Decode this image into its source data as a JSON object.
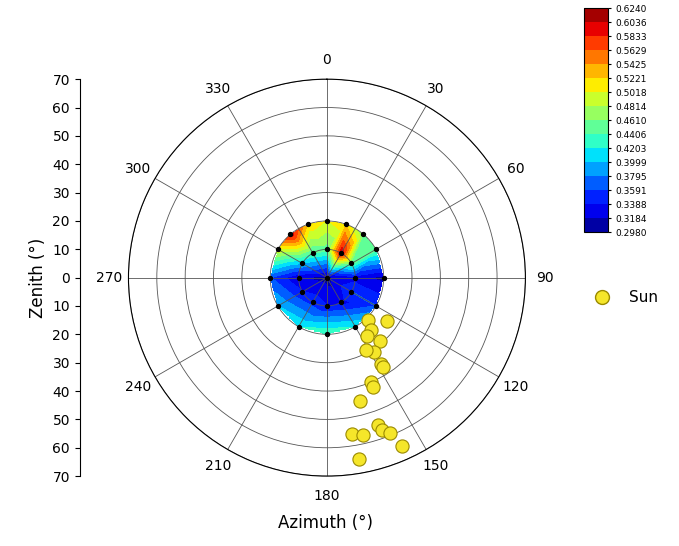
{
  "chart_data": {
    "type": "polar_heatmap",
    "x_label": "Azimuth (°)",
    "y_label": "Zenith (°)",
    "xticks": [
      0,
      30,
      60,
      90,
      120,
      150,
      180,
      210,
      240,
      270,
      300,
      330
    ],
    "ylim": [
      0,
      70
    ],
    "yticks": [
      0,
      10,
      20,
      30,
      40,
      50,
      60,
      70
    ],
    "grid": true,
    "legend": "center right",
    "colorbar": {
      "range": [
        0.298,
        0.624
      ],
      "ticks": [
        {
          "value": 0.298,
          "label": "0.2980"
        },
        0.3184,
        0.3388,
        0.3591,
        0.3795,
        0.3999,
        0.4203,
        0.4406,
        {
          "value": 0.461,
          "label": "0.4610"
        },
        0.4814,
        0.5018,
        0.5221,
        0.5425,
        0.5629,
        0.5833,
        0.6036,
        {
          "value": 0.624,
          "label": "0.6240"
        }
      ]
    },
    "measurements": {
      "azimuth": [
        0,
        0,
        30,
        60,
        90,
        120,
        150,
        180,
        210,
        240,
        270,
        300,
        330,
        0,
        20,
        40,
        60,
        90,
        120,
        150,
        180,
        210,
        240,
        270,
        300,
        320,
        340
      ],
      "zenith": [
        0,
        10,
        10,
        10,
        10,
        10,
        10,
        10,
        10,
        10,
        10,
        10,
        10,
        20,
        20,
        20,
        20,
        20,
        20,
        20,
        20,
        20,
        20,
        20,
        20,
        20,
        20
      ],
      "values": [
        0.31,
        0.45,
        0.6,
        0.45,
        0.33,
        0.36,
        0.33,
        0.34,
        0.35,
        0.34,
        0.32,
        0.4,
        0.44,
        0.5,
        0.52,
        0.46,
        0.45,
        0.31,
        0.36,
        0.42,
        0.44,
        0.42,
        0.4,
        0.36,
        0.5,
        0.6,
        0.52
      ]
    },
    "series": [
      {
        "name": "Sun",
        "type": "scatter",
        "color": "#f5e62a",
        "marker": "circle",
        "azimuth": [
          136,
          126,
          140,
          146,
          140,
          148,
          148,
          148,
          157,
          157,
          165,
          161,
          171,
          167,
          160,
          158,
          152,
          170,
          156
        ],
        "zenith": [
          21,
          26,
          24,
          25,
          29,
          31,
          36,
          37,
          40,
          42,
          45,
          55,
          56,
          57,
          57,
          59,
          29,
          65,
          65
        ]
      }
    ]
  }
}
